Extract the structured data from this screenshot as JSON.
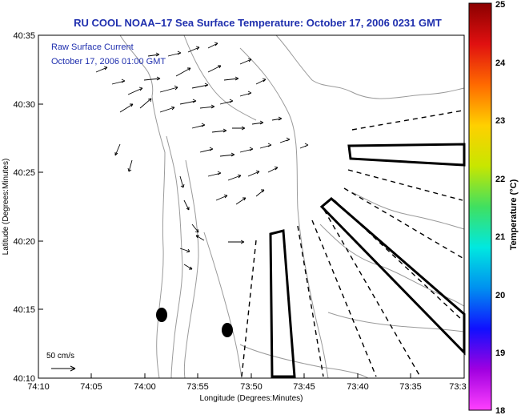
{
  "title": "RU COOL  NOAA–17  Sea Surface Temperature:  October 17, 2006 0231 GMT",
  "overlay": {
    "line1": "Raw Surface Current",
    "line2": "October 17, 2006 01:00 GMT"
  },
  "scale_label": "50 cm/s",
  "x_axis": {
    "label": "Longitude (Degrees:Minutes)",
    "ticks": [
      "74:10",
      "74:05",
      "74:00",
      "73:55",
      "73:50",
      "73:45",
      "73:40",
      "73:35",
      "73:3"
    ]
  },
  "y_axis": {
    "label": "Latitude (Degrees:Minutes)",
    "ticks": [
      "40:35",
      "40:30",
      "40:25",
      "40:20",
      "40:15",
      "40:10"
    ]
  },
  "colorbar": {
    "label": "Temperature (°C)",
    "ticks": [
      "25",
      "24",
      "23",
      "22",
      "21",
      "20",
      "19",
      "18"
    ],
    "colors": [
      "#8b0000",
      "#e01010",
      "#ff6a00",
      "#ffd000",
      "#c8e600",
      "#40e060",
      "#00e8e0",
      "#0090f0",
      "#1010ff",
      "#a000e0",
      "#ff40ff"
    ]
  },
  "colors": {
    "title": "#1f2fae",
    "frame": "#000000",
    "contour": "#9a9a9a",
    "vector": "#000000"
  }
}
